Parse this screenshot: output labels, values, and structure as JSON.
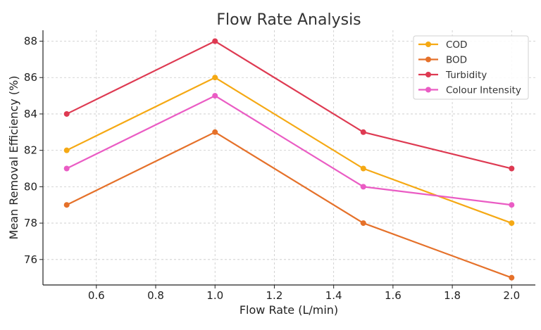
{
  "chart_data": {
    "type": "line",
    "title": "Flow Rate Analysis",
    "xlabel": "Flow Rate (L/min)",
    "ylabel": "Mean Removal Efficiency (%)",
    "x": [
      0.5,
      1.0,
      1.5,
      2.0
    ],
    "xlim": [
      0.42,
      2.08
    ],
    "ylim": [
      74.6,
      88.6
    ],
    "xticks": [
      "0.6",
      "0.8",
      "1.0",
      "1.2",
      "1.4",
      "1.6",
      "1.8",
      "2.0"
    ],
    "yticks": [
      "76",
      "78",
      "80",
      "82",
      "84",
      "86",
      "88"
    ],
    "grid": true,
    "legend_position": "top-right",
    "series": [
      {
        "name": "COD",
        "values": [
          82,
          86,
          81,
          78
        ],
        "color": "#F5A914"
      },
      {
        "name": "BOD",
        "values": [
          79,
          83,
          78,
          75
        ],
        "color": "#E5712A"
      },
      {
        "name": "Turbidity",
        "values": [
          84,
          88,
          83,
          81
        ],
        "color": "#DE3A52"
      },
      {
        "name": "Colour Intensity",
        "values": [
          81,
          85,
          80,
          79
        ],
        "color": "#EA5CC4"
      }
    ]
  }
}
